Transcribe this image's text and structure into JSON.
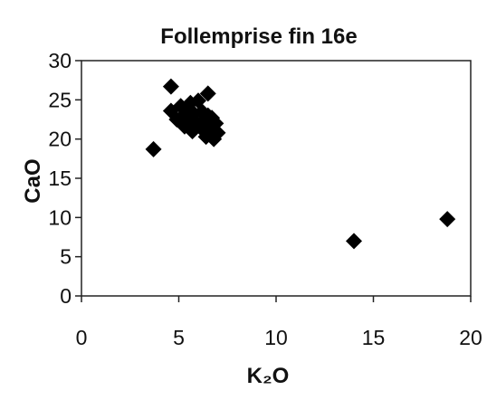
{
  "chart_data": {
    "type": "scatter",
    "title": "Follemprise   fin 16e",
    "xlabel": "K₂O",
    "ylabel": "CaO",
    "xlim": [
      0,
      20
    ],
    "ylim": [
      0,
      30
    ],
    "x_ticks": [
      0,
      5,
      10,
      15,
      20
    ],
    "y_ticks": [
      0,
      5,
      10,
      15,
      20,
      25,
      30
    ],
    "x_tick_labels": [
      "0",
      "5",
      "10",
      "15",
      "20"
    ],
    "y_tick_labels": [
      "0",
      "5",
      "10",
      "15",
      "20",
      "25",
      "30"
    ],
    "grid": false,
    "legend": "none",
    "marker": "diamond",
    "marker_color": "#000000",
    "series": [
      {
        "points": [
          {
            "x": 3.7,
            "y": 18.7
          },
          {
            "x": 4.6,
            "y": 26.7
          },
          {
            "x": 4.6,
            "y": 23.6
          },
          {
            "x": 4.9,
            "y": 22.5
          },
          {
            "x": 5.1,
            "y": 24.2
          },
          {
            "x": 5.2,
            "y": 22.9
          },
          {
            "x": 5.3,
            "y": 21.6
          },
          {
            "x": 5.4,
            "y": 23.8
          },
          {
            "x": 5.5,
            "y": 22.3
          },
          {
            "x": 5.6,
            "y": 24.6
          },
          {
            "x": 5.7,
            "y": 21.0
          },
          {
            "x": 5.8,
            "y": 23.2
          },
          {
            "x": 5.9,
            "y": 22.0
          },
          {
            "x": 6.0,
            "y": 24.9
          },
          {
            "x": 6.1,
            "y": 21.5
          },
          {
            "x": 6.2,
            "y": 23.5
          },
          {
            "x": 6.3,
            "y": 22.4
          },
          {
            "x": 6.4,
            "y": 20.3
          },
          {
            "x": 6.5,
            "y": 25.8
          },
          {
            "x": 6.5,
            "y": 23.0
          },
          {
            "x": 6.6,
            "y": 21.2
          },
          {
            "x": 6.7,
            "y": 22.7
          },
          {
            "x": 6.8,
            "y": 20.0
          },
          {
            "x": 6.9,
            "y": 22.0
          },
          {
            "x": 7.0,
            "y": 20.8
          },
          {
            "x": 14.0,
            "y": 7.0
          },
          {
            "x": 18.8,
            "y": 9.8
          }
        ]
      }
    ]
  }
}
